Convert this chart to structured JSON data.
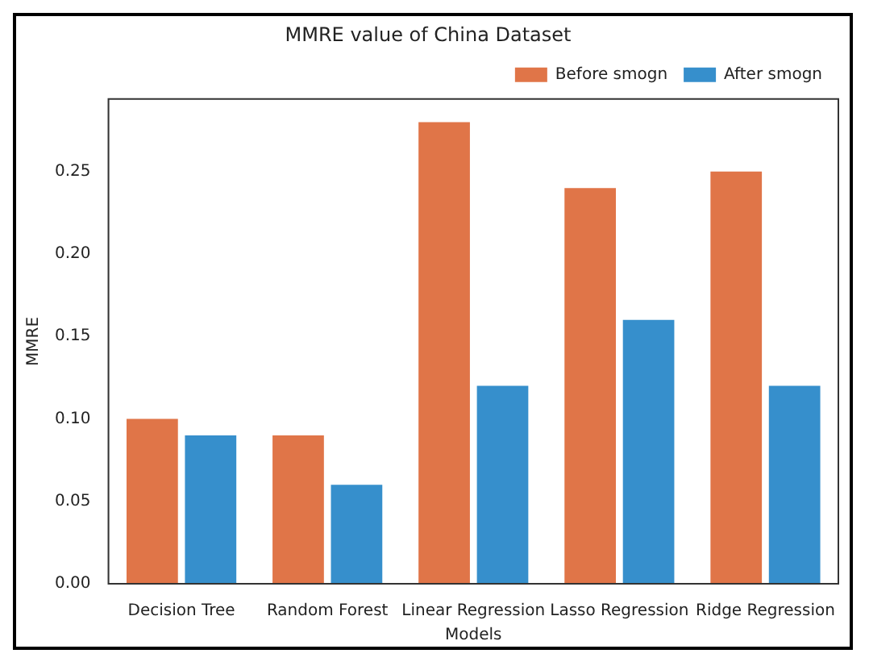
{
  "chart_data": {
    "type": "bar",
    "title": "MMRE value of China Dataset",
    "xlabel": "Models",
    "ylabel": "MMRE",
    "categories": [
      "Decision Tree",
      "Random Forest",
      "Linear Regression",
      "Lasso Regression",
      "Ridge Regression"
    ],
    "series": [
      {
        "name": "Before smogn",
        "color": "#e07548",
        "values": [
          0.1,
          0.09,
          0.28,
          0.24,
          0.25
        ]
      },
      {
        "name": "After smogn",
        "color": "#368fcc",
        "values": [
          0.09,
          0.06,
          0.12,
          0.16,
          0.12
        ]
      }
    ],
    "ylim": [
      0,
      0.294
    ],
    "yticks": [
      {
        "value": 0,
        "label": "0.00"
      },
      {
        "value": 0.05,
        "label": "0.05"
      },
      {
        "value": 0.1,
        "label": "0.10"
      },
      {
        "value": 0.15,
        "label": "0.15"
      },
      {
        "value": 0.2,
        "label": "0.20"
      },
      {
        "value": 0.25,
        "label": "0.25"
      }
    ],
    "grid": false,
    "legend": "top right"
  }
}
